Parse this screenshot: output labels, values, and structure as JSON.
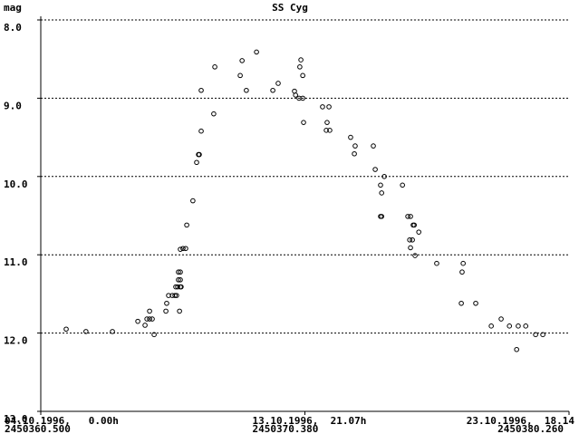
{
  "chart_data": {
    "type": "scatter",
    "title": "SS Cyg",
    "y_label": "mag",
    "xlim": [
      2450360.5,
      2450380.26
    ],
    "ylim": [
      13,
      8
    ],
    "xticks": [
      {
        "value": 2450360.5,
        "label": "2450360.500"
      },
      {
        "value": 2450370.38,
        "label": "2450370.380"
      },
      {
        "value": 2450380.26,
        "label": "2450380.260"
      }
    ],
    "xtick_dates": [
      "04.10.1996,   0.00h",
      "13.10.1996,  21.07h",
      "23.10.1996,  18.14"
    ],
    "yticks": [
      {
        "value": 8,
        "label": "8.0"
      },
      {
        "value": 9,
        "label": "9.0"
      },
      {
        "value": 10,
        "label": "10.0"
      },
      {
        "value": 11,
        "label": "11.0"
      },
      {
        "value": 12,
        "label": "12.0"
      },
      {
        "value": 13,
        "label": "13.0"
      }
    ],
    "grid": true,
    "color": "#000000",
    "x": [
      2450361.45,
      2450362.19,
      2450363.18,
      2450364.13,
      2450364.4,
      2450364.47,
      2450364.57,
      2450364.57,
      2450364.67,
      2450364.74,
      2450365.18,
      2450365.21,
      2450365.28,
      2450365.42,
      2450365.52,
      2450365.55,
      2450365.58,
      2450365.62,
      2450365.65,
      2450365.65,
      2450365.69,
      2450365.72,
      2450365.72,
      2450365.72,
      2450365.72,
      2450365.75,
      2450365.82,
      2450365.92,
      2450365.96,
      2450366.19,
      2450366.33,
      2450366.4,
      2450366.43,
      2450366.5,
      2450366.5,
      2450366.97,
      2450367.01,
      2450367.96,
      2450368.03,
      2450368.19,
      2450368.57,
      2450369.18,
      2450369.38,
      2450369.99,
      2450370.03,
      2450370.16,
      2450370.19,
      2450370.23,
      2450370.3,
      2450370.3,
      2450370.33,
      2450371.04,
      2450371.18,
      2450371.28,
      2450371.21,
      2450371.31,
      2450372.09,
      2450372.23,
      2450372.26,
      2450372.94,
      2450373.01,
      2450373.21,
      2450373.25,
      2450373.35,
      2450373.25,
      2450373.21,
      2450374.03,
      2450374.23,
      2450374.33,
      2450374.3,
      2450374.33,
      2450374.4,
      2450374.43,
      2450374.47,
      2450374.5,
      2450374.64,
      2450375.31,
      2450376.23,
      2450376.3,
      2450376.26,
      2450376.77,
      2450377.35,
      2450377.72,
      2450378.03,
      2450378.3,
      2450378.36,
      2450378.64,
      2450379.01,
      2450379.28
    ],
    "values": [
      11.95,
      11.98,
      11.98,
      11.85,
      11.9,
      11.82,
      11.82,
      11.72,
      11.82,
      12.02,
      11.72,
      11.62,
      11.52,
      11.52,
      11.52,
      11.41,
      11.52,
      11.41,
      11.32,
      11.22,
      11.72,
      11.41,
      11.32,
      11.22,
      10.93,
      11.41,
      10.92,
      10.92,
      10.62,
      10.31,
      9.82,
      9.72,
      9.72,
      9.42,
      8.9,
      9.2,
      8.6,
      8.71,
      8.52,
      8.9,
      8.41,
      8.9,
      8.81,
      8.91,
      8.96,
      9.0,
      8.6,
      8.51,
      8.71,
      9.0,
      9.31,
      9.11,
      9.41,
      9.11,
      9.31,
      9.41,
      9.5,
      9.71,
      9.61,
      9.61,
      9.91,
      10.11,
      10.21,
      10.0,
      10.51,
      10.51,
      10.11,
      10.51,
      10.51,
      10.81,
      10.91,
      10.81,
      10.62,
      10.62,
      11.01,
      10.71,
      11.11,
      11.62,
      11.11,
      11.22,
      11.62,
      11.91,
      11.82,
      11.91,
      12.21,
      11.91,
      11.91,
      12.02,
      12.02
    ]
  }
}
